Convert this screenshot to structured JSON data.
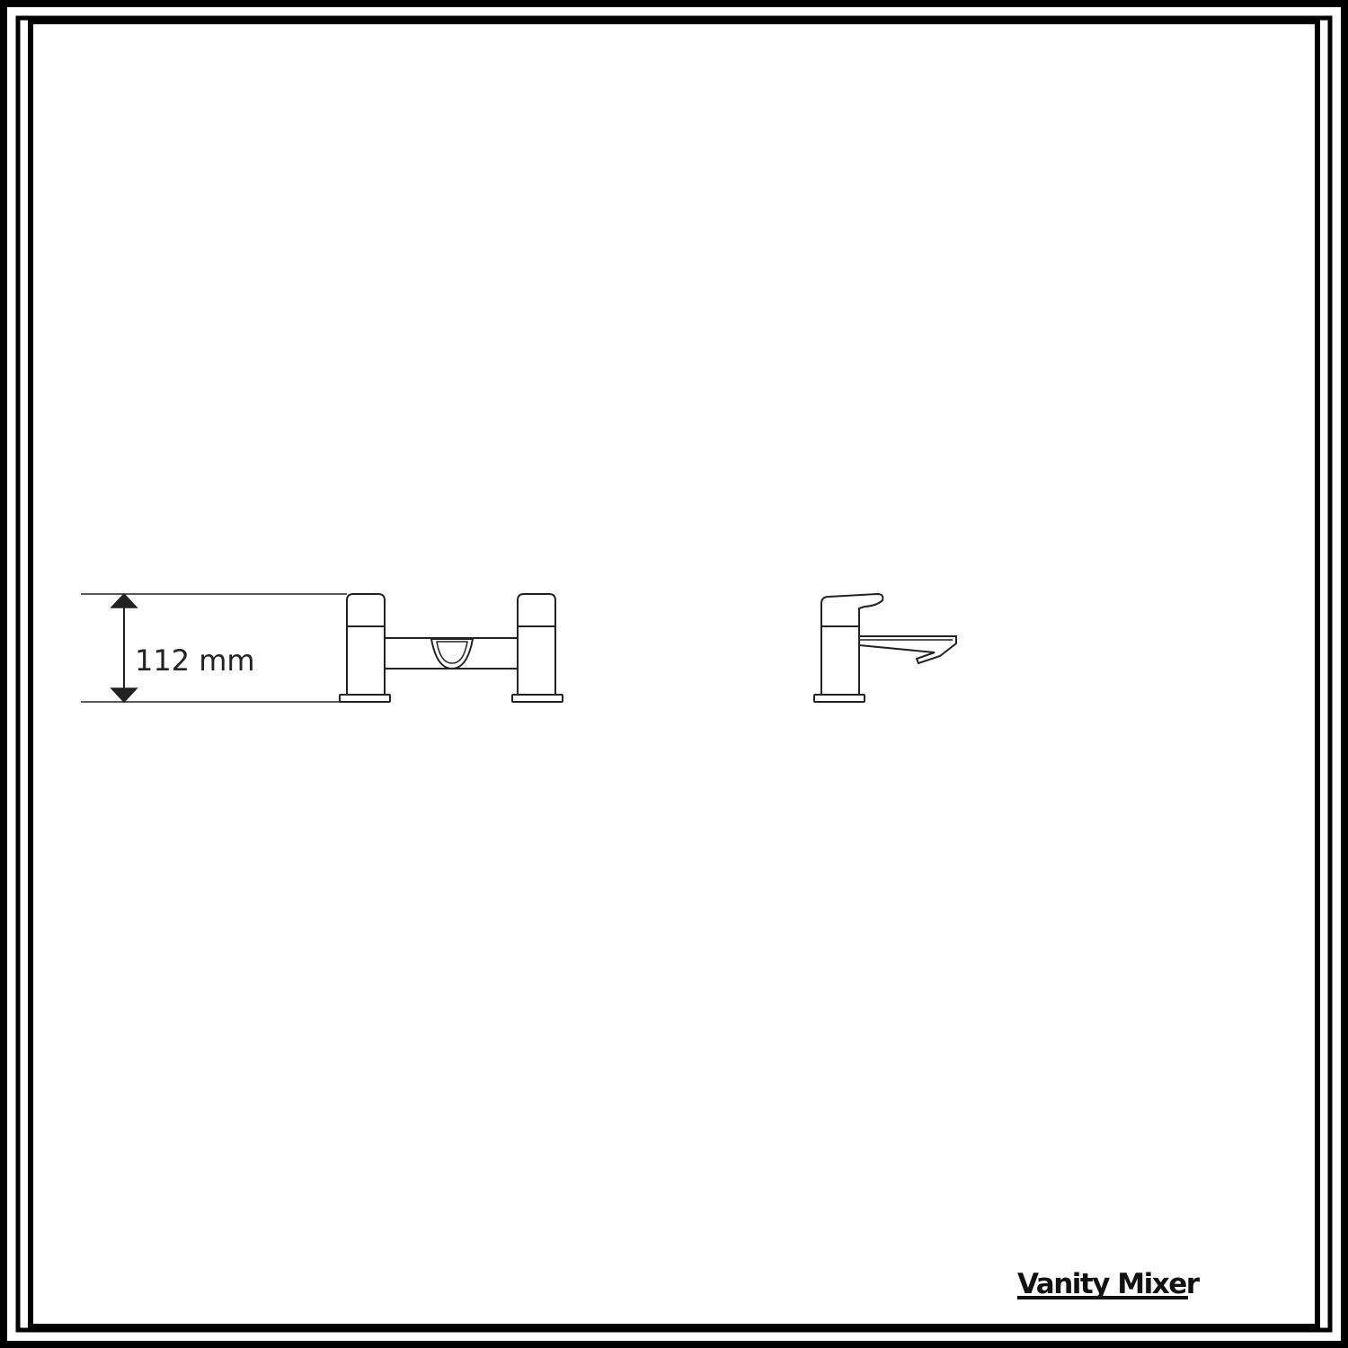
{
  "dimension": {
    "height_label": "112 mm"
  },
  "caption": {
    "title": "Vanity Mixer"
  },
  "colors": {
    "line": "#222222",
    "background": "#ffffff"
  }
}
